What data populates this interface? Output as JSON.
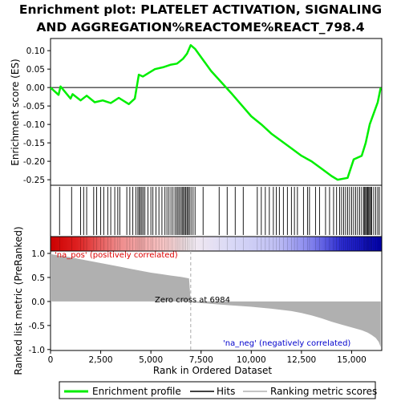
{
  "title_line1": "Enrichment plot: PLATELET ACTIVATION, SIGNALING",
  "title_line2": "AND AGGREGATION%REACTOME%REACT_798.4",
  "colors": {
    "es_line": "#00ee00",
    "hits": "#000000",
    "metric_fill": "#b0b0b0",
    "zero_cross": "#aaaaaa",
    "pos_label": "#dd0000",
    "neg_label": "#0000cc"
  },
  "chart_data": [
    {
      "type": "line",
      "panel": "enrichment-score",
      "ylabel": "Enrichment score (ES)",
      "xlim": [
        0,
        16500
      ],
      "ylim": [
        -0.265,
        0.133
      ],
      "yticks": [
        0.1,
        0.05,
        0.0,
        -0.05,
        -0.1,
        -0.15,
        -0.2,
        -0.25
      ],
      "ytick_labels": [
        "0.10",
        "0.05",
        "0.00",
        "-0.05",
        "-0.10",
        "-0.15",
        "-0.20",
        "-0.25"
      ],
      "zero_line": true,
      "x": [
        0,
        400,
        500,
        1000,
        1100,
        1500,
        1800,
        2200,
        2600,
        3000,
        3400,
        3900,
        4200,
        4400,
        4600,
        4900,
        5200,
        5600,
        6000,
        6300,
        6600,
        6800,
        6984,
        7200,
        8000,
        9000,
        10000,
        10500,
        11000,
        11500,
        12000,
        12500,
        13000,
        13500,
        14000,
        14300,
        14800,
        15100,
        15500,
        15700,
        15900,
        16100,
        16300,
        16450
      ],
      "y": [
        0.0,
        -0.02,
        0.003,
        -0.03,
        -0.018,
        -0.035,
        -0.022,
        -0.04,
        -0.035,
        -0.042,
        -0.028,
        -0.045,
        -0.03,
        0.035,
        0.03,
        0.04,
        0.05,
        0.055,
        0.062,
        0.065,
        0.078,
        0.092,
        0.115,
        0.105,
        0.045,
        -0.015,
        -0.078,
        -0.1,
        -0.125,
        -0.145,
        -0.165,
        -0.185,
        -0.2,
        -0.22,
        -0.24,
        -0.25,
        -0.245,
        -0.195,
        -0.185,
        -0.15,
        -0.1,
        -0.07,
        -0.04,
        0.0
      ],
      "series": [
        {
          "name": "Enrichment profile"
        }
      ]
    },
    {
      "type": "scatter",
      "panel": "hits",
      "xlim": [
        0,
        16500
      ],
      "x": [
        450,
        1050,
        1500,
        1650,
        1800,
        2150,
        2300,
        2500,
        2650,
        2850,
        3000,
        3200,
        3350,
        3450,
        3800,
        3950,
        4100,
        4250,
        4350,
        4420,
        4480,
        4550,
        4620,
        4700,
        4850,
        5000,
        5100,
        5250,
        5400,
        5550,
        5700,
        5800,
        5900,
        6000,
        6100,
        6200,
        6280,
        6350,
        6420,
        6500,
        6560,
        6620,
        6680,
        6740,
        6800,
        6860,
        6920,
        7000,
        7100,
        7200,
        7600,
        8400,
        8800,
        9200,
        9600,
        10300,
        10500,
        10700,
        10900,
        11100,
        11250,
        11400,
        11600,
        11800,
        12000,
        12150,
        12300,
        12600,
        12800,
        12900,
        13200,
        13400,
        13700,
        13900,
        14100,
        14250,
        14400,
        14500,
        14600,
        14700,
        14800,
        14900,
        15000,
        15100,
        15200,
        15300,
        15400,
        15500,
        15600,
        15650,
        15700,
        15750,
        15800,
        15850,
        15900,
        15950,
        16000,
        16100,
        16200,
        16300,
        16380
      ],
      "series": [
        {
          "name": "Hits"
        }
      ]
    },
    {
      "type": "area",
      "panel": "ranked-metric",
      "ylabel": "Ranked list metric (PreRanked)",
      "xlabel": "Rank in Ordered Dataset",
      "xlim": [
        0,
        16500
      ],
      "ylim": [
        -1.02,
        1.05
      ],
      "xticks": [
        0,
        2500,
        5000,
        7500,
        10000,
        12500,
        15000
      ],
      "xtick_labels": [
        "0",
        "2,500",
        "5,000",
        "7,500",
        "10,000",
        "12,500",
        "15,000"
      ],
      "yticks": [
        1.0,
        0.5,
        0.0,
        -0.5,
        -1.0
      ],
      "ytick_labels": [
        "1.0",
        "0.5",
        "0.0",
        "-0.5",
        "-1.0"
      ],
      "x": [
        0,
        100,
        500,
        1000,
        1500,
        2000,
        2500,
        3000,
        3500,
        4000,
        4500,
        5000,
        5500,
        6000,
        6500,
        6900,
        6984,
        7100,
        8000,
        9000,
        10000,
        11000,
        12000,
        12500,
        13000,
        13500,
        14000,
        14500,
        15000,
        15500,
        15800,
        16000,
        16200,
        16350,
        16450
      ],
      "y": [
        1.0,
        0.98,
        0.95,
        0.92,
        0.88,
        0.84,
        0.8,
        0.76,
        0.72,
        0.68,
        0.64,
        0.6,
        0.57,
        0.54,
        0.51,
        0.48,
        0.0,
        -0.02,
        -0.05,
        -0.08,
        -0.11,
        -0.15,
        -0.2,
        -0.24,
        -0.29,
        -0.35,
        -0.42,
        -0.48,
        -0.54,
        -0.6,
        -0.65,
        -0.7,
        -0.76,
        -0.84,
        -0.95
      ],
      "series": [
        {
          "name": "Ranking metric scores"
        }
      ],
      "annotations": {
        "pos_label": "'na_pos' (positively correlated)",
        "neg_label": "'na_neg' (negatively correlated)",
        "zero_cross_label": "Zero cross at 6984",
        "zero_cross_x": 6984
      }
    }
  ],
  "legend": {
    "placement": "bottom",
    "items": [
      {
        "label": "Enrichment profile",
        "color": "#00ee00"
      },
      {
        "label": "Hits",
        "color": "#000000"
      },
      {
        "label": "Ranking metric scores",
        "color": "#b0b0b0"
      }
    ]
  }
}
